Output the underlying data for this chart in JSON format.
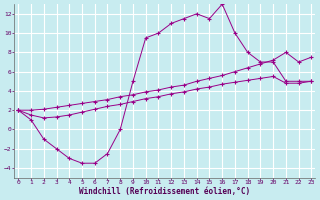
{
  "xlabel": "Windchill (Refroidissement éolien,°C)",
  "bg_color": "#c8ecf0",
  "grid_color": "#ffffff",
  "line_color": "#990088",
  "xlim": [
    0,
    23
  ],
  "ylim": [
    -5,
    13
  ],
  "xticks": [
    0,
    1,
    2,
    3,
    4,
    5,
    6,
    7,
    8,
    9,
    10,
    11,
    12,
    13,
    14,
    15,
    16,
    17,
    18,
    19,
    20,
    21,
    22,
    23
  ],
  "yticks": [
    -4,
    -2,
    0,
    2,
    4,
    6,
    8,
    10,
    12
  ],
  "line1_x": [
    0,
    1,
    2,
    3,
    4,
    5,
    6,
    7,
    8,
    9,
    10,
    11,
    12,
    13,
    14,
    15,
    16,
    17,
    18,
    19,
    20,
    21,
    22,
    23
  ],
  "line1_y": [
    2.0,
    1.0,
    -1.0,
    -2.0,
    -3.0,
    -3.5,
    -3.5,
    -2.5,
    0.0,
    5.0,
    9.5,
    10.0,
    11.0,
    11.5,
    12.0,
    11.5,
    13.0,
    10.0,
    8.0,
    7.0,
    7.0,
    5.0,
    5.0,
    5.0
  ],
  "line2_x": [
    0,
    1,
    2,
    3,
    4,
    5,
    6,
    7,
    8,
    9,
    10,
    11,
    12,
    13,
    14,
    15,
    16,
    17,
    18,
    19,
    20,
    21,
    22,
    23
  ],
  "line2_y": [
    2.0,
    1.5,
    1.2,
    1.3,
    1.5,
    1.8,
    2.1,
    2.4,
    2.6,
    2.9,
    3.2,
    3.4,
    3.7,
    3.9,
    4.2,
    4.4,
    4.7,
    4.9,
    5.1,
    5.3,
    5.5,
    4.8,
    4.8,
    5.0
  ],
  "line3_x": [
    0,
    1,
    2,
    3,
    4,
    5,
    6,
    7,
    8,
    9,
    10,
    11,
    12,
    13,
    14,
    15,
    16,
    17,
    18,
    19,
    20,
    21,
    22,
    23
  ],
  "line3_y": [
    2.0,
    2.0,
    2.1,
    2.3,
    2.5,
    2.7,
    2.9,
    3.1,
    3.4,
    3.6,
    3.9,
    4.1,
    4.4,
    4.6,
    5.0,
    5.3,
    5.6,
    6.0,
    6.4,
    6.8,
    7.2,
    8.0,
    7.0,
    7.5
  ]
}
